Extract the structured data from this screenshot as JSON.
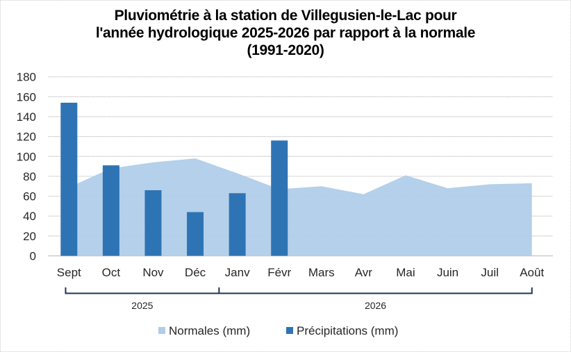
{
  "chart_data": {
    "type": "bar",
    "title_lines": [
      "Pluviométrie à la station de Villegusien-le-Lac pour",
      "l'année hydrologique 2025-2026 par rapport à la normale",
      "(1991-2020)"
    ],
    "categories": [
      "Sept",
      "Oct",
      "Nov",
      "Déc",
      "Janv",
      "Févr",
      "Mars",
      "Avr",
      "Mai",
      "Juin",
      "Juil",
      "Août"
    ],
    "year_groups": [
      {
        "label": "2025",
        "start": 0,
        "end": 3
      },
      {
        "label": "2026",
        "start": 4,
        "end": 11
      }
    ],
    "ylim": [
      0,
      180
    ],
    "yticks": [
      0,
      20,
      40,
      60,
      80,
      100,
      120,
      140,
      160,
      180
    ],
    "grid": true,
    "legend_position": "bottom",
    "series": [
      {
        "name": "Normales (mm)",
        "type": "area",
        "color": "#b0cde9",
        "values": [
          69,
          88,
          94,
          98,
          83,
          67,
          70,
          62,
          81,
          68,
          72,
          73
        ]
      },
      {
        "name": "Précipitations (mm)",
        "type": "bar",
        "color": "#2e74b5",
        "values": [
          154,
          91,
          66,
          44,
          63,
          116,
          null,
          null,
          null,
          null,
          null,
          null
        ]
      }
    ],
    "xlabel": "",
    "ylabel": ""
  }
}
